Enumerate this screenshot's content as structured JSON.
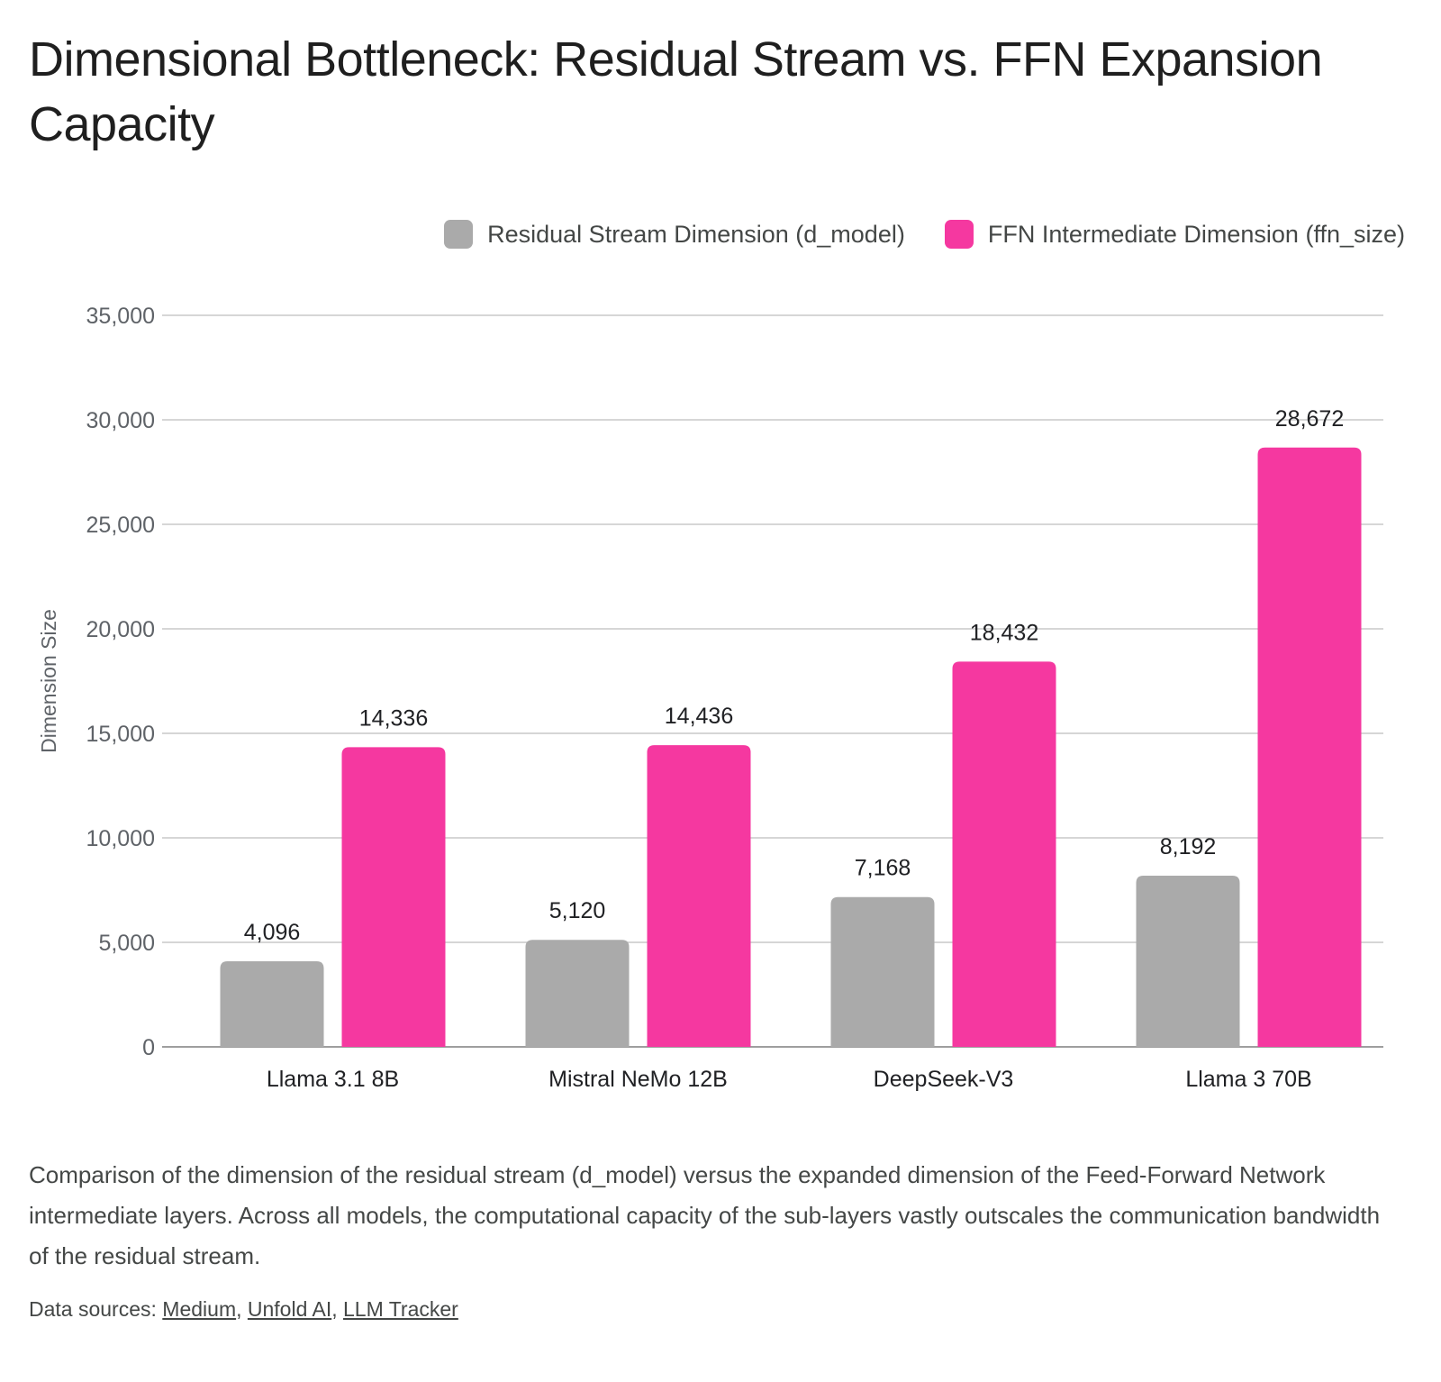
{
  "title": "Dimensional Bottleneck: Residual Stream vs. FFN Expansion Capacity",
  "caption": "Comparison of the dimension of the residual stream (d_model) versus the expanded dimension of the Feed-Forward Network intermediate layers. Across all models, the computational capacity of the sub-layers vastly outscales the communication bandwidth of the residual stream.",
  "sources": {
    "prefix": "Data sources: ",
    "links": [
      "Medium",
      "Unfold AI",
      "LLM Tracker"
    ]
  },
  "chart_data": {
    "type": "bar",
    "title": "Dimensional Bottleneck: Residual Stream vs. FFN Expansion Capacity",
    "xlabel": "",
    "ylabel": "Dimension Size",
    "ylim": [
      0,
      35000
    ],
    "yticks": [
      0,
      5000,
      10000,
      15000,
      20000,
      25000,
      30000,
      35000
    ],
    "grid": true,
    "legend_position": "top-right",
    "categories": [
      "Llama 3.1 8B",
      "Mistral NeMo 12B",
      "DeepSeek-V3",
      "Llama 3 70B"
    ],
    "series": [
      {
        "name": "Residual Stream Dimension (d_model)",
        "color": "#aaaaaa",
        "values": [
          4096,
          5120,
          7168,
          8192
        ],
        "labels": [
          "4,096",
          "5,120",
          "7,168",
          "8,192"
        ]
      },
      {
        "name": "FFN Intermediate Dimension (ffn_size)",
        "color": "#f538a0",
        "values": [
          14336,
          14436,
          18432,
          28672
        ],
        "labels": [
          "14,336",
          "14,436",
          "18,432",
          "28,672"
        ]
      }
    ]
  }
}
